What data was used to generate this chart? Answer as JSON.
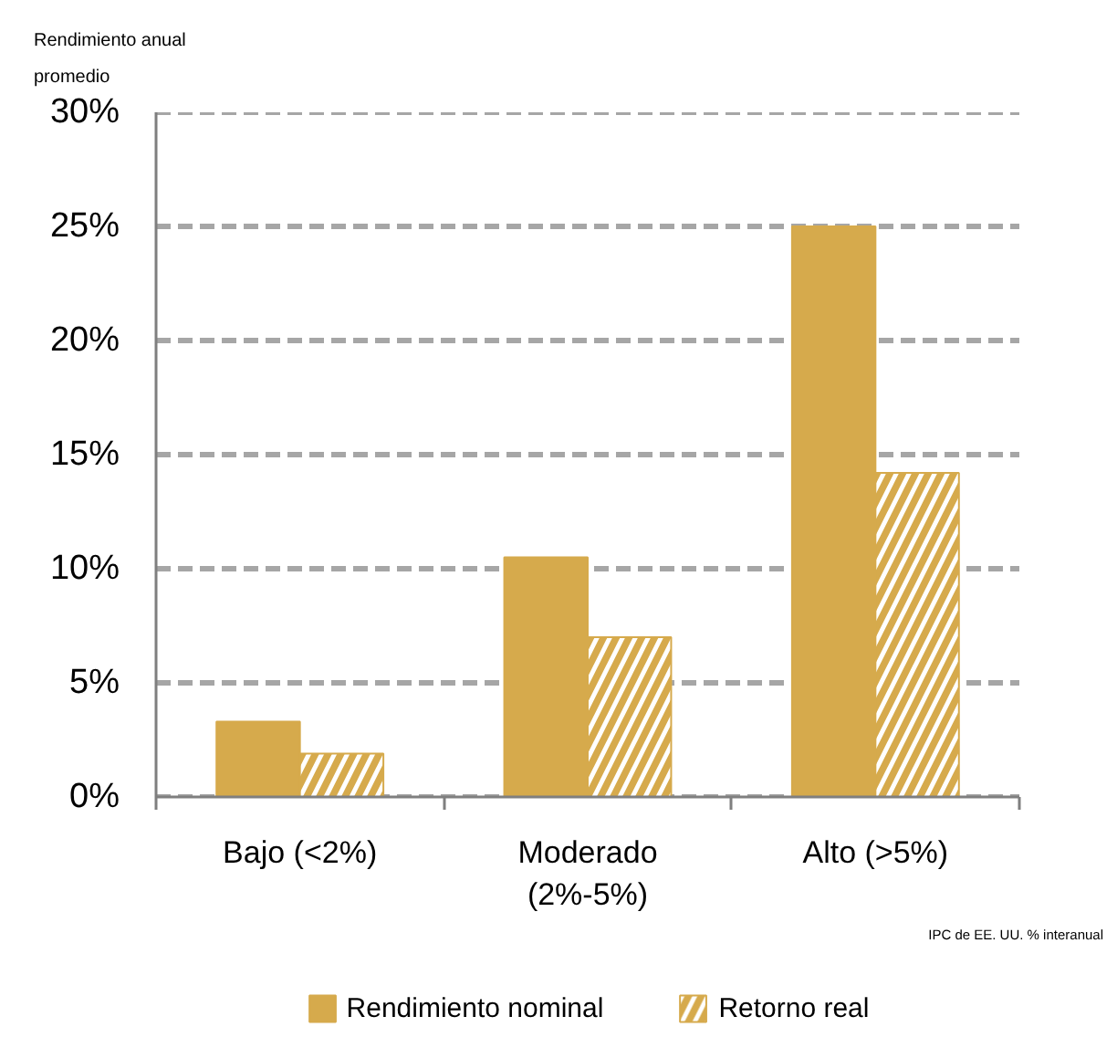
{
  "chart_data": {
    "type": "bar",
    "ylabel": "Rendimiento anual promedio",
    "xlabel": "IPC de EE. UU. % interanual",
    "categories": [
      "Bajo (<2%)",
      "Moderado (2%-5%)",
      "Alto (>5%)"
    ],
    "series": [
      {
        "name": "Rendimiento nominal",
        "color": "#d6aa4c",
        "values": [
          3.3,
          10.5,
          25.0
        ]
      },
      {
        "name": "Retorno real",
        "color": "#d6aa4c",
        "values": [
          1.9,
          7.0,
          14.2
        ]
      }
    ],
    "ylim": [
      0,
      30
    ],
    "yticks": [
      {
        "value": 0,
        "label": "0%"
      },
      {
        "value": 5,
        "label": "5%"
      },
      {
        "value": 10,
        "label": "10%"
      },
      {
        "value": 15,
        "label": "15%"
      },
      {
        "value": 20,
        "label": "20%"
      },
      {
        "value": 25,
        "label": "25%"
      },
      {
        "value": 30,
        "label": "30%"
      }
    ],
    "grid": "y",
    "legend": "bottom"
  }
}
